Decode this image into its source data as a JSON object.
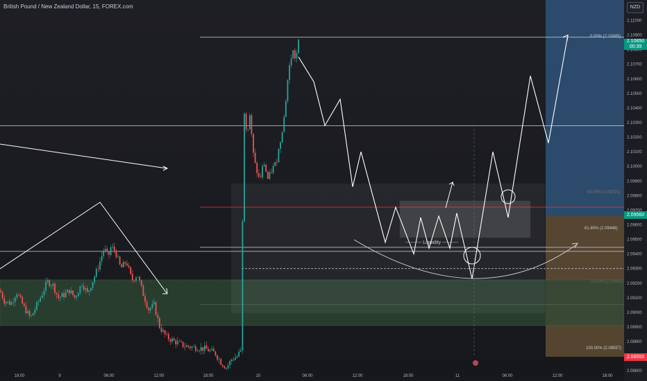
{
  "symbol_title": "British Pound / New Zealand Dollar, 15, FOREX.com",
  "currency_badge": "NZD",
  "last_price": "2.10850",
  "countdown": "00:39",
  "price_green_tag": "2.09560",
  "price_red_tag": "2.08555",
  "fib_labels": {
    "top": "0.00% (2.10885)",
    "fifty": "50.00% (2.09721)",
    "sixtyone": "61.80% (2.09446)",
    "seventyeight": "78.60% (2.09053)",
    "hundred": "100.00% (2.08557)"
  },
  "liquidity_label": "---------- Liquidity ----------",
  "colors": {
    "up": "#26a69a",
    "down": "#ef5350",
    "bg": "#1b1c21",
    "fib50": "#f23645",
    "price_tag": "#089981"
  },
  "chart_data": {
    "type": "candlestick",
    "title": "British Pound / New Zealand Dollar, 15, FOREX.com",
    "y_axis": {
      "ticks": [
        "2.11000",
        "2.10900",
        "2.10800",
        "2.10700",
        "2.10600",
        "2.10500",
        "2.10400",
        "2.10300",
        "2.10200",
        "2.10100",
        "2.10000",
        "2.09900",
        "2.09800",
        "2.09700",
        "2.09600",
        "2.09500",
        "2.09400",
        "2.09300",
        "2.09200",
        "2.09100",
        "2.09000",
        "2.08900",
        "2.08800",
        "2.08700",
        "2.08600"
      ],
      "range": [
        2.0853,
        2.1114
      ]
    },
    "x_axis": {
      "ticks": [
        "18:00",
        "9",
        "06:00",
        "12:00",
        "18:00",
        "10",
        "06:00",
        "12:00",
        "18:00",
        "11",
        "06:00",
        "12:00",
        "18:00"
      ]
    },
    "ohlc_path": [
      [
        0,
        2.0915
      ],
      [
        6,
        2.0908
      ],
      [
        16,
        2.0906
      ],
      [
        24,
        2.0914
      ],
      [
        34,
        2.0904
      ],
      [
        44,
        2.0896
      ],
      [
        54,
        2.0906
      ],
      [
        60,
        2.0912
      ],
      [
        68,
        2.0921
      ],
      [
        76,
        2.0919
      ],
      [
        84,
        2.091
      ],
      [
        92,
        2.0912
      ],
      [
        100,
        2.0915
      ],
      [
        108,
        2.091
      ],
      [
        118,
        2.092
      ],
      [
        126,
        2.0913
      ],
      [
        134,
        2.0922
      ],
      [
        142,
        2.0932
      ],
      [
        150,
        2.0944
      ],
      [
        156,
        2.0938
      ],
      [
        160,
        2.0945
      ],
      [
        166,
        2.0942
      ],
      [
        174,
        2.093
      ],
      [
        182,
        2.0935
      ],
      [
        190,
        2.0922
      ],
      [
        198,
        2.0926
      ],
      [
        206,
        2.0913
      ],
      [
        214,
        2.0902
      ],
      [
        222,
        2.0905
      ],
      [
        230,
        2.089
      ],
      [
        240,
        2.0883
      ],
      [
        252,
        2.088
      ],
      [
        266,
        2.0877
      ],
      [
        280,
        2.0876
      ],
      [
        296,
        2.0875
      ],
      [
        310,
        2.0872
      ],
      [
        318,
        2.0866
      ],
      [
        326,
        2.0862
      ],
      [
        334,
        2.0868
      ],
      [
        342,
        2.087
      ],
      [
        348,
        2.0875
      ],
      [
        350,
        2.1
      ],
      [
        352,
        2.1038
      ],
      [
        356,
        2.1022
      ],
      [
        360,
        2.1036
      ],
      [
        364,
        2.1011
      ],
      [
        368,
        2.1
      ],
      [
        374,
        2.099
      ],
      [
        380,
        2.1003
      ],
      [
        386,
        2.0991
      ],
      [
        392,
        2.0998
      ],
      [
        398,
        2.1003
      ],
      [
        404,
        2.1018
      ],
      [
        410,
        2.1036
      ],
      [
        414,
        2.1058
      ],
      [
        418,
        2.1072
      ],
      [
        422,
        2.1079
      ],
      [
        426,
        2.1073
      ],
      [
        430,
        2.1085
      ]
    ],
    "fib_levels": [
      {
        "level": "0.00%",
        "price": 2.10885
      },
      {
        "level": "50.00%",
        "price": 2.09721
      },
      {
        "level": "61.80%",
        "price": 2.09446
      },
      {
        "level": "78.60%",
        "price": 2.09053
      },
      {
        "level": "100.00%",
        "price": 2.08557
      }
    ],
    "projection_path": [
      [
        430,
        2.1075
      ],
      [
        452,
        2.1058
      ],
      [
        468,
        2.1028
      ],
      [
        490,
        2.1046
      ],
      [
        508,
        2.0986
      ],
      [
        520,
        2.101
      ],
      [
        555,
        2.0948
      ],
      [
        570,
        2.0972
      ],
      [
        596,
        2.094
      ],
      [
        606,
        2.0965
      ],
      [
        618,
        2.0944
      ],
      [
        632,
        2.0966
      ],
      [
        648,
        2.0944
      ],
      [
        658,
        2.0968
      ],
      [
        680,
        2.0923
      ],
      [
        710,
        2.101
      ],
      [
        732,
        2.0965
      ],
      [
        764,
        2.1062
      ],
      [
        790,
        2.1016
      ],
      [
        818,
        2.109
      ]
    ],
    "horizontal_lines": [
      2.10885,
      2.10278,
      2.09446,
      2.09418,
      2.093
    ],
    "grid": false,
    "legend": "none"
  }
}
